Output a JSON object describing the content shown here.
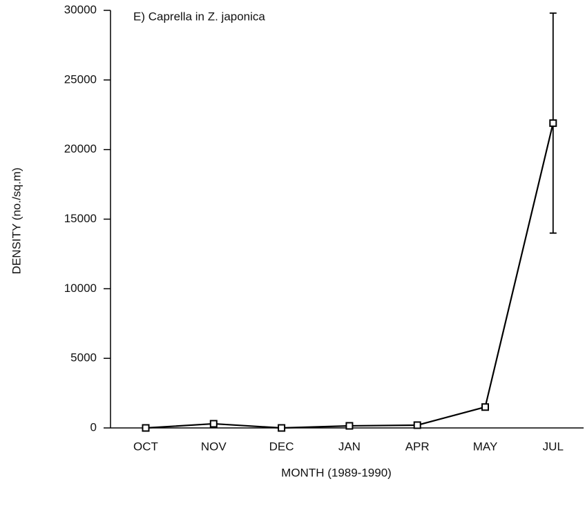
{
  "chart_data": {
    "type": "line",
    "title": "E) Caprella in Z. japonica",
    "x_label": "MONTH  (1989-1990)",
    "y_label": "DENSITY  (no./sq.m)",
    "categories": [
      "OCT",
      "NOV",
      "DEC",
      "JAN",
      "APR",
      "MAY",
      "JUL"
    ],
    "values": [
      0,
      300,
      0,
      150,
      200,
      1500,
      21900
    ],
    "errors": [
      null,
      null,
      null,
      null,
      null,
      null,
      7900
    ],
    "color": "#000000",
    "ylim": [
      0,
      30000
    ],
    "yticks": [
      0,
      5000,
      10000,
      15000,
      20000,
      25000,
      30000
    ]
  }
}
